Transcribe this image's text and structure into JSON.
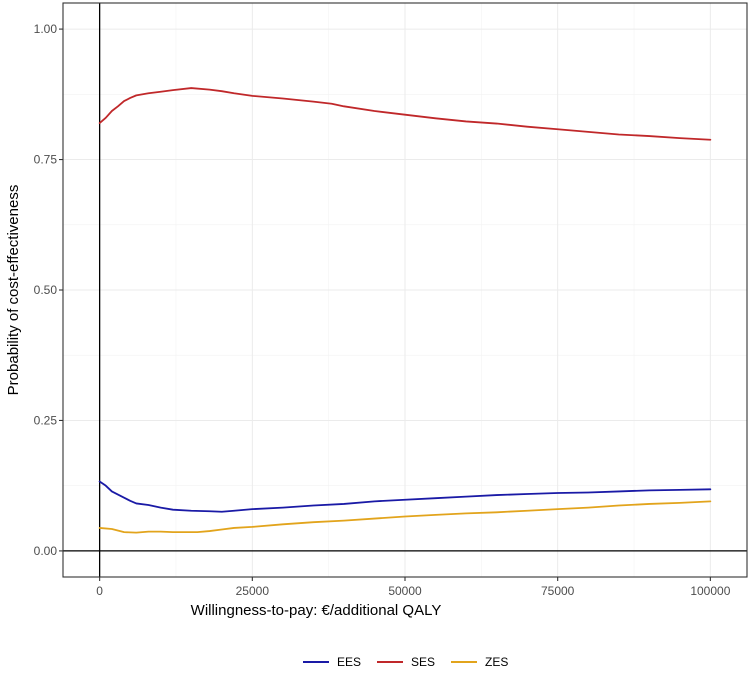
{
  "chart_data": {
    "type": "line",
    "title": "",
    "xlabel": "Willingness-to-pay: €/additional QALY",
    "ylabel": "Probability of cost-effectiveness",
    "xlim": [
      -6000,
      106000
    ],
    "ylim": [
      -0.05,
      1.05
    ],
    "x_ticks": [
      0,
      25000,
      50000,
      75000,
      100000
    ],
    "x_tick_labels": [
      "0",
      "25000",
      "50000",
      "75000",
      "100000"
    ],
    "y_ticks": [
      0,
      0.25,
      0.5,
      0.75,
      1
    ],
    "y_tick_labels": [
      "0.00",
      "0.25",
      "0.50",
      "0.75",
      "1.00"
    ],
    "grid": true,
    "reference_lines": {
      "x": 0,
      "y": 0
    },
    "legend_position": "bottom",
    "series": [
      {
        "name": "EES",
        "color": "#1a1aa6",
        "x": [
          0,
          1000,
          2000,
          3000,
          4000,
          5000,
          6000,
          8000,
          10000,
          12000,
          15000,
          18000,
          20000,
          22000,
          25000,
          30000,
          35000,
          40000,
          45000,
          50000,
          55000,
          60000,
          65000,
          70000,
          75000,
          80000,
          85000,
          90000,
          95000,
          100000
        ],
        "values": [
          0.133,
          0.125,
          0.114,
          0.108,
          0.102,
          0.096,
          0.091,
          0.088,
          0.083,
          0.079,
          0.077,
          0.076,
          0.075,
          0.077,
          0.08,
          0.083,
          0.087,
          0.09,
          0.095,
          0.098,
          0.101,
          0.104,
          0.107,
          0.109,
          0.111,
          0.112,
          0.114,
          0.116,
          0.117,
          0.118
        ]
      },
      {
        "name": "SES",
        "color": "#c0282a",
        "x": [
          0,
          1000,
          2000,
          3000,
          4000,
          5000,
          6000,
          8000,
          10000,
          12000,
          15000,
          18000,
          20000,
          22000,
          25000,
          30000,
          35000,
          38000,
          40000,
          45000,
          50000,
          55000,
          60000,
          65000,
          70000,
          75000,
          80000,
          85000,
          90000,
          95000,
          100000
        ],
        "values": [
          0.82,
          0.83,
          0.843,
          0.852,
          0.862,
          0.868,
          0.873,
          0.877,
          0.88,
          0.883,
          0.887,
          0.884,
          0.881,
          0.877,
          0.872,
          0.867,
          0.861,
          0.857,
          0.852,
          0.843,
          0.836,
          0.829,
          0.823,
          0.819,
          0.813,
          0.808,
          0.803,
          0.798,
          0.795,
          0.791,
          0.788
        ]
      },
      {
        "name": "ZES",
        "color": "#e2a41c",
        "x": [
          0,
          2000,
          4000,
          6000,
          8000,
          10000,
          12000,
          14000,
          16000,
          18000,
          20000,
          22000,
          25000,
          30000,
          35000,
          40000,
          45000,
          50000,
          55000,
          60000,
          65000,
          70000,
          75000,
          80000,
          85000,
          90000,
          95000,
          100000
        ],
        "values": [
          0.044,
          0.042,
          0.036,
          0.035,
          0.037,
          0.037,
          0.036,
          0.036,
          0.036,
          0.038,
          0.041,
          0.044,
          0.046,
          0.051,
          0.055,
          0.058,
          0.062,
          0.066,
          0.069,
          0.072,
          0.074,
          0.077,
          0.08,
          0.083,
          0.087,
          0.09,
          0.092,
          0.095
        ]
      }
    ]
  }
}
